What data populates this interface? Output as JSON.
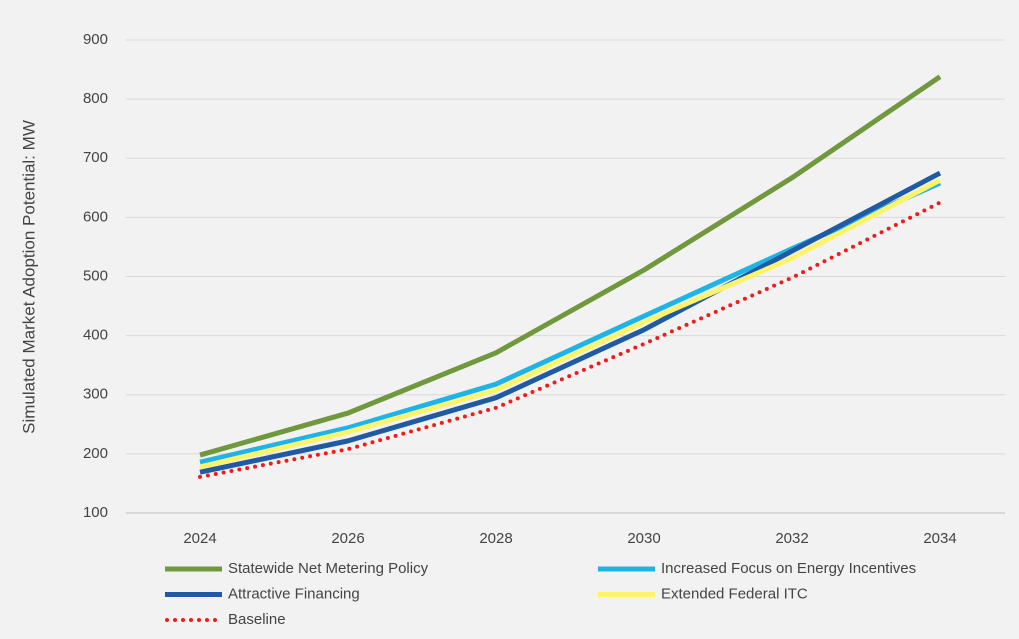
{
  "chart_data": {
    "type": "line",
    "y_label": "Simulated Market Adoption Potential: MW",
    "categories": [
      "2024",
      "2026",
      "2028",
      "2030",
      "2032",
      "2034"
    ],
    "series": [
      {
        "name": "Statewide Net Metering Policy",
        "color": "#70983d",
        "values": [
          198,
          269,
          371,
          511,
          667,
          838
        ]
      },
      {
        "name": "Increased Focus on Energy Incentives",
        "color": "#1fb4e8",
        "values": [
          186,
          244,
          318,
          433,
          547,
          658
        ]
      },
      {
        "name": "Attractive Financing",
        "color": "#1f5aa3",
        "values": [
          169,
          222,
          295,
          410,
          543,
          675
        ]
      },
      {
        "name": "Extended Federal ITC",
        "color": "#fff36b",
        "values": [
          178,
          237,
          308,
          423,
          531,
          663
        ]
      },
      {
        "name": "Baseline",
        "color": "#ee1c1c",
        "line_style": "dotted",
        "values": [
          161,
          208,
          278,
          386,
          498,
          625
        ]
      }
    ],
    "ylim": [
      100,
      900
    ],
    "yticks": [
      100,
      200,
      300,
      400,
      500,
      600,
      700,
      800,
      900
    ],
    "grid": true
  }
}
